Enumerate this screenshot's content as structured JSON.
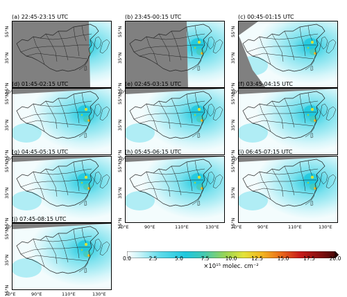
{
  "panels": [
    {
      "title": "(a) 22:45-23:15 UTC",
      "coverage": "east"
    },
    {
      "title": "(b) 23:45-00:15 UTC",
      "coverage": "east-wide"
    },
    {
      "title": "(c) 00:45-01:15 UTC",
      "coverage": "central"
    },
    {
      "title": "(d) 01:45-02:15 UTC",
      "coverage": "full"
    },
    {
      "title": "(e) 02:45-03:15 UTC",
      "coverage": "full"
    },
    {
      "title": "(f) 03:45-04:15 UTC",
      "coverage": "full"
    },
    {
      "title": "(g) 04:45-05:15 UTC",
      "coverage": "full"
    },
    {
      "title": "(h) 05:45-06:15 UTC",
      "coverage": "full"
    },
    {
      "title": "(i) 06:45-07:15 UTC",
      "coverage": "full"
    },
    {
      "title": "(j) 07:45-08:15 UTC",
      "coverage": "full"
    }
  ],
  "axes": {
    "lat_labels": [
      "55°N",
      "35°N",
      "15°N"
    ],
    "lon_labels": [
      "70°E",
      "90°E",
      "110°E",
      "130°E"
    ]
  },
  "colorbar": {
    "ticks": [
      "0.0",
      "2.5",
      "5.0",
      "7.5",
      "10.0",
      "12.5",
      "15.0",
      "17.5",
      "20.0"
    ],
    "label": "×10¹⁵ molec. cm⁻²",
    "min": 0,
    "max": 20,
    "extend": "max",
    "colors": [
      "#ffffff",
      "#b9f0f7",
      "#57dbe8",
      "#1ec8de",
      "#42c8b4",
      "#8fd35a",
      "#d6e23a",
      "#f6d21e",
      "#f2a01b",
      "#e5561a",
      "#c81c1a",
      "#8e0f10",
      "#4a0808"
    ]
  }
}
